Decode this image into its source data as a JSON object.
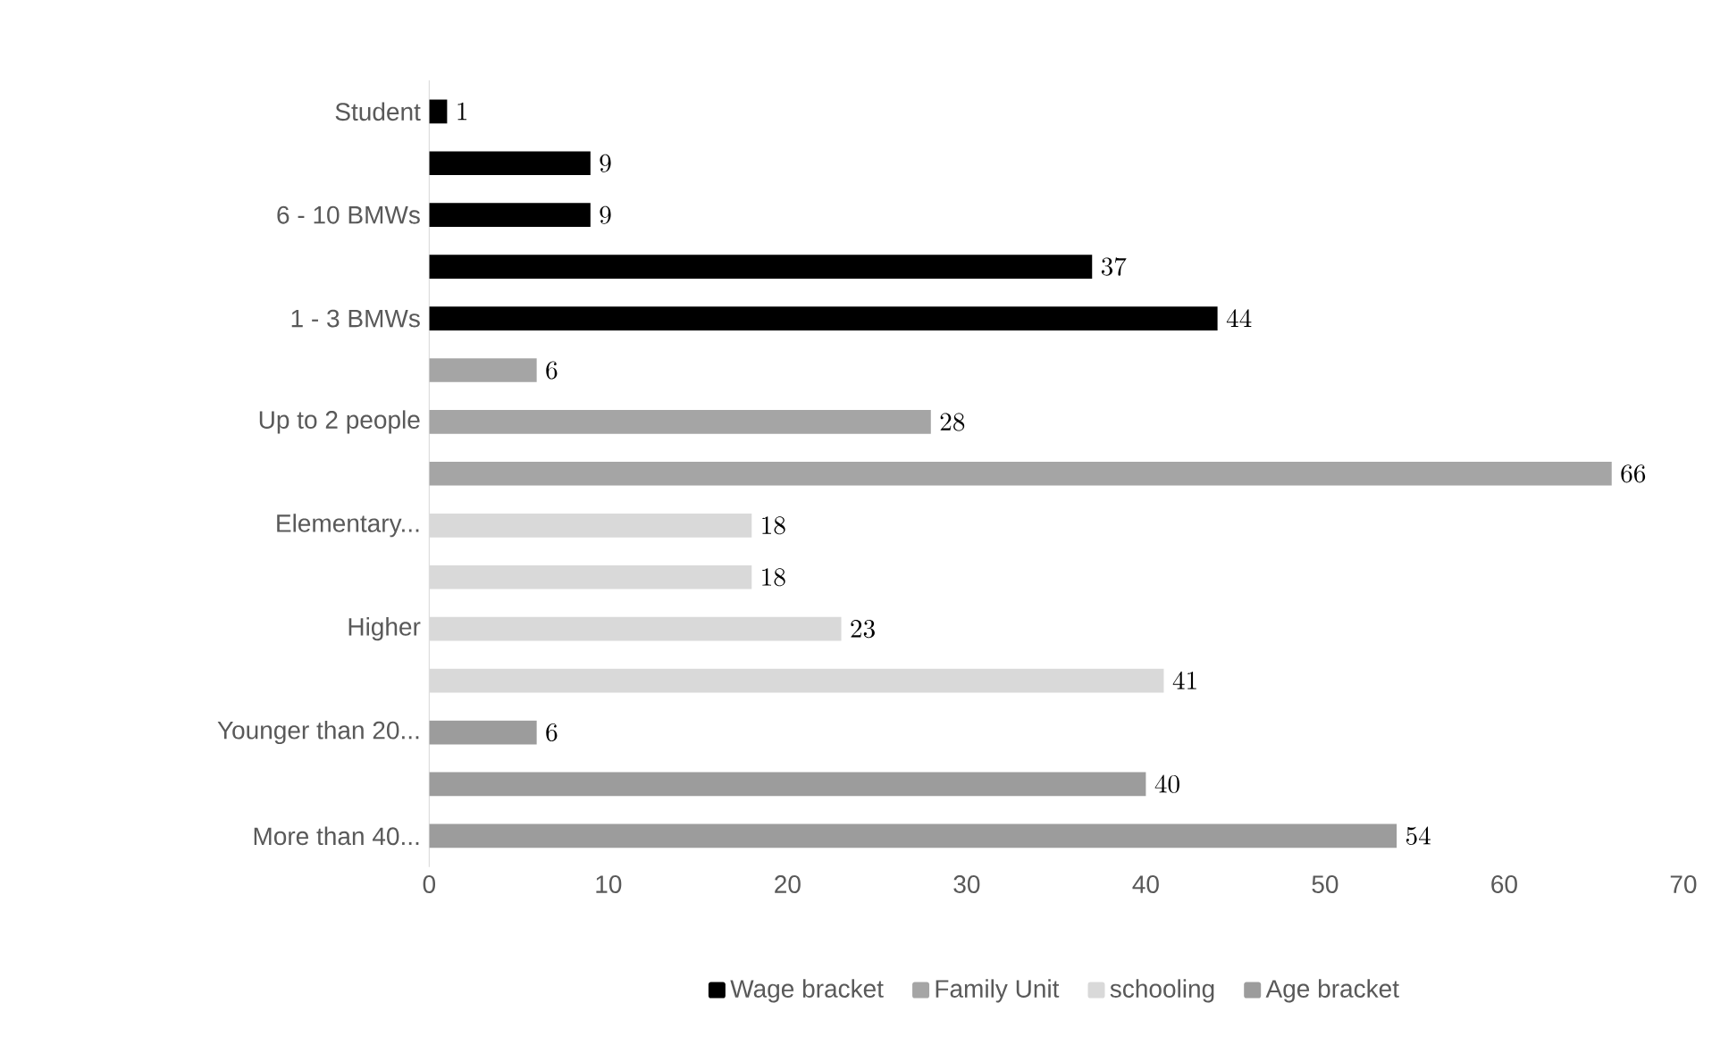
{
  "chart_data": {
    "type": "bar",
    "orientation": "horizontal",
    "categories": [
      "Student",
      null,
      "6 - 10 BMWs",
      null,
      "1 - 3 BMWs",
      null,
      "Up to 2 people",
      null,
      "Elementary...",
      null,
      "Higher",
      null,
      "Younger than 20...",
      null,
      "More than 40..."
    ],
    "series": [
      {
        "name": "Wage bracket",
        "color": "#000000",
        "values": [
          1,
          9,
          9,
          37,
          44,
          null,
          null,
          null,
          null,
          null,
          null,
          null,
          null,
          null,
          null
        ]
      },
      {
        "name": "Family Unit",
        "color": "#a5a5a5",
        "values": [
          null,
          null,
          null,
          null,
          null,
          6,
          28,
          66,
          null,
          null,
          null,
          null,
          null,
          null,
          null
        ]
      },
      {
        "name": "schooling",
        "color": "#d9d9d9",
        "values": [
          null,
          null,
          null,
          null,
          null,
          null,
          null,
          null,
          18,
          18,
          23,
          41,
          null,
          null,
          null
        ]
      },
      {
        "name": "Age bracket",
        "color": "#9c9c9c",
        "values": [
          null,
          null,
          null,
          null,
          null,
          null,
          null,
          null,
          null,
          null,
          null,
          null,
          6,
          40,
          54
        ]
      }
    ],
    "xlim": [
      0,
      70
    ],
    "xticks": [
      0,
      10,
      20,
      30,
      40,
      50,
      60,
      70
    ],
    "data_labels": true,
    "grid": false,
    "legend": "bottom"
  }
}
